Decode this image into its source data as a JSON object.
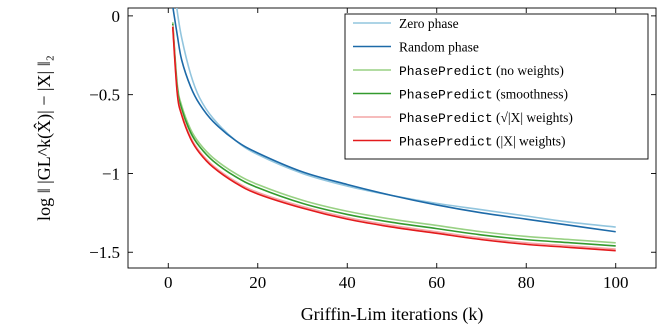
{
  "chart_data": {
    "type": "line",
    "xlabel": "Griffin-Lim iterations (k)",
    "ylabel": "log ‖ |GL^k(X̂)| − |X| ‖₂",
    "xlim": [
      -9,
      109
    ],
    "ylim": [
      -1.6,
      0.05
    ],
    "xticks": [
      0,
      20,
      40,
      60,
      80,
      100
    ],
    "xtick_labels": [
      "0",
      "20",
      "40",
      "60",
      "80",
      "100"
    ],
    "yticks": [
      0,
      -0.5,
      -1,
      -1.5
    ],
    "ytick_labels": [
      "0",
      "−0.5",
      "−1",
      "−1.5"
    ],
    "grid": false,
    "legend_position": "top-right",
    "x": [
      1,
      2,
      3,
      5,
      7,
      10,
      15,
      20,
      30,
      40,
      50,
      60,
      70,
      80,
      90,
      100
    ],
    "series": [
      {
        "name": "Zero phase",
        "color": "#92c5de",
        "legend_parts": [
          {
            "text": "Zero phase",
            "mono": false
          }
        ],
        "values": [
          0.25,
          0.03,
          -0.14,
          -0.37,
          -0.52,
          -0.65,
          -0.79,
          -0.88,
          -1.0,
          -1.08,
          -1.14,
          -1.19,
          -1.23,
          -1.27,
          -1.31,
          -1.34
        ]
      },
      {
        "name": "Random phase",
        "color": "#1d6aa8",
        "legend_parts": [
          {
            "text": "Random phase",
            "mono": false
          }
        ],
        "values": [
          0.06,
          -0.12,
          -0.28,
          -0.45,
          -0.56,
          -0.67,
          -0.79,
          -0.87,
          -0.99,
          -1.07,
          -1.14,
          -1.2,
          -1.25,
          -1.29,
          -1.33,
          -1.37
        ]
      },
      {
        "name": "PhasePredict (no weights)",
        "color": "#99d184",
        "legend_parts": [
          {
            "text": "PhasePredict",
            "mono": true
          },
          {
            "text": " (no weights)",
            "mono": false
          }
        ],
        "values": [
          -0.04,
          -0.43,
          -0.57,
          -0.72,
          -0.81,
          -0.9,
          -1.0,
          -1.07,
          -1.17,
          -1.24,
          -1.29,
          -1.33,
          -1.37,
          -1.4,
          -1.42,
          -1.44
        ]
      },
      {
        "name": "PhasePredict (smoothness)",
        "color": "#339a2e",
        "legend_parts": [
          {
            "text": "PhasePredict",
            "mono": true
          },
          {
            "text": " (smoothness)",
            "mono": false
          }
        ],
        "values": [
          -0.05,
          -0.45,
          -0.59,
          -0.74,
          -0.83,
          -0.92,
          -1.02,
          -1.09,
          -1.19,
          -1.26,
          -1.31,
          -1.35,
          -1.39,
          -1.42,
          -1.44,
          -1.46
        ]
      },
      {
        "name": "PhasePredict (√|X| weights)",
        "color": "#f4a5a6",
        "legend_parts": [
          {
            "text": "PhasePredict",
            "mono": true
          },
          {
            "text": " (√|X| weights)",
            "mono": false
          }
        ],
        "values": [
          -0.06,
          -0.48,
          -0.62,
          -0.77,
          -0.86,
          -0.95,
          -1.05,
          -1.12,
          -1.21,
          -1.28,
          -1.33,
          -1.37,
          -1.41,
          -1.44,
          -1.46,
          -1.48
        ]
      },
      {
        "name": "PhasePredict (|X| weights)",
        "color": "#e31a1c",
        "legend_parts": [
          {
            "text": "PhasePredict",
            "mono": true
          },
          {
            "text": " (|X| weights)",
            "mono": false
          }
        ],
        "values": [
          -0.07,
          -0.49,
          -0.63,
          -0.78,
          -0.87,
          -0.96,
          -1.06,
          -1.13,
          -1.22,
          -1.29,
          -1.34,
          -1.38,
          -1.42,
          -1.45,
          -1.47,
          -1.49
        ]
      }
    ]
  }
}
